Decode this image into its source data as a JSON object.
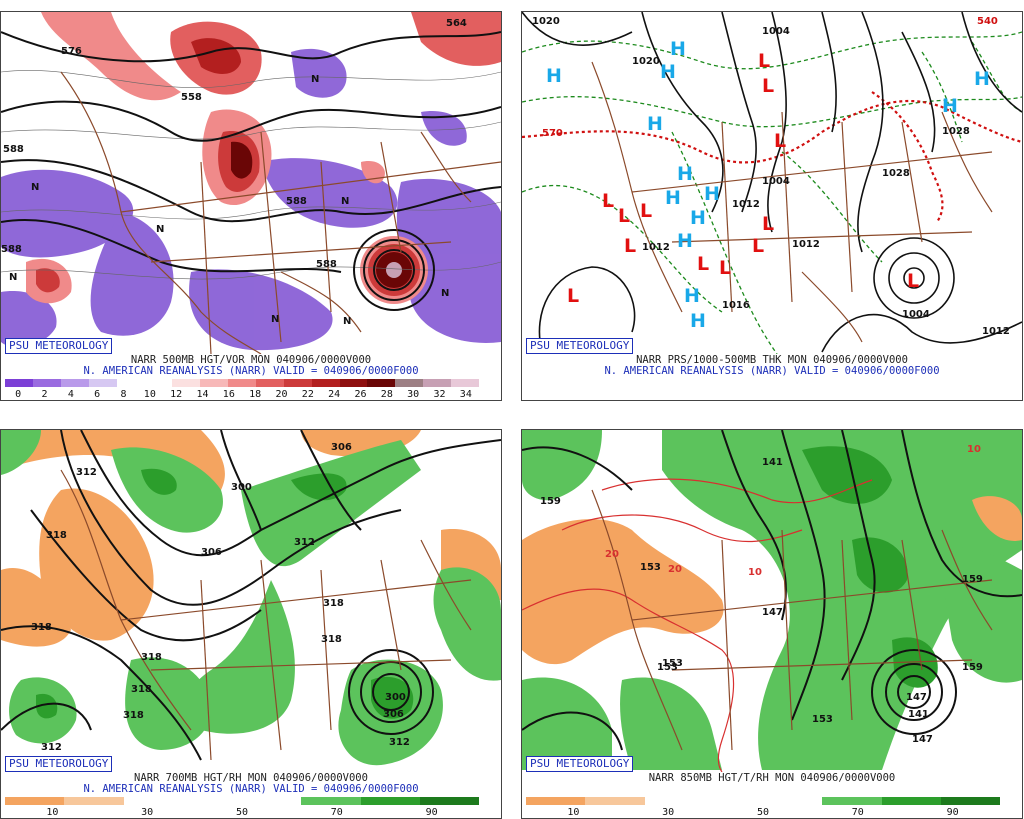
{
  "panels": [
    {
      "credit": "PSU METEOROLOGY",
      "line1": "NARR 500MB HGT/VOR MON 040906/0000V000",
      "line2": "N. AMERICAN REANALYSIS (NARR) VALID = 040906/0000F000",
      "colorbar_ticks": [
        "0",
        "2",
        "4",
        "6",
        "8",
        "10",
        "12",
        "14",
        "16",
        "18",
        "20",
        "22",
        "24",
        "26",
        "28",
        "30",
        "32",
        "34"
      ],
      "colorbar_colors": [
        "#7c3fd6",
        "#9a6be0",
        "#b99aea",
        "#d6c8f2",
        "#ffffff",
        "#ffffff",
        "#fbe0e0",
        "#f7b8b8",
        "#f08a8a",
        "#e25f5f",
        "#cc3a3a",
        "#b31f1f",
        "#8e0f0f",
        "#6a0606",
        "#9d7f84",
        "#c7a0b4",
        "#e8c8d8"
      ],
      "contour_labels": [
        "576",
        "558",
        "588",
        "588",
        "588",
        "588",
        "564",
        "N",
        "N",
        "N",
        "N",
        "N",
        "N",
        "N",
        "N"
      ]
    },
    {
      "credit": "PSU METEOROLOGY",
      "line1": "NARR PRS/1000-500MB THK MON 040906/0000V000",
      "line2": "N. AMERICAN REANALYSIS (NARR) VALID = 040906/0000F000",
      "contour_labels": [
        "1020",
        "1020",
        "1004",
        "1028",
        "1028",
        "1012",
        "1012",
        "1012",
        "1004",
        "1004",
        "1012",
        "1016",
        "570",
        "540"
      ],
      "highs": [
        "H",
        "H",
        "H",
        "H",
        "H",
        "H",
        "H",
        "H",
        "H",
        "H",
        "H",
        "H",
        "H"
      ],
      "lows": [
        "L",
        "L",
        "L",
        "L",
        "L",
        "L",
        "L",
        "L",
        "L",
        "L",
        "L",
        "L",
        "L"
      ],
      "colors": {
        "high": "#19a8e8",
        "low": "#e11010",
        "thickness": "#d01010",
        "dashed": "#1c8a1c"
      }
    },
    {
      "credit": "PSU METEOROLOGY",
      "line1": "NARR 700MB HGT/RH MON 040906/0000V000",
      "line2": "N. AMERICAN REANALYSIS (NARR) VALID = 040906/0000F000",
      "colorbar_ticks": [
        "10",
        "30",
        "50",
        "70",
        "90"
      ],
      "colorbar_colors": [
        "#f4a460",
        "#f7c79b",
        "#ffffff",
        "#ffffff",
        "#ffffff",
        "#5cc35c",
        "#2c9e2c",
        "#1d7a1d"
      ],
      "contour_labels": [
        "312",
        "318",
        "318",
        "300",
        "306",
        "312",
        "318",
        "318",
        "318",
        "318",
        "318",
        "312",
        "306",
        "300",
        "306",
        "312"
      ]
    },
    {
      "credit": "PSU METEOROLOGY",
      "line1": "NARR 850MB HGT/T/RH MON 040906/0000V000",
      "line2": "",
      "colorbar_ticks": [
        "10",
        "30",
        "50",
        "70",
        "90"
      ],
      "colorbar_colors": [
        "#f4a460",
        "#f7c79b",
        "#ffffff",
        "#ffffff",
        "#ffffff",
        "#5cc35c",
        "#2c9e2c",
        "#1d7a1d"
      ],
      "contour_labels": [
        "141",
        "159",
        "153",
        "20",
        "20",
        "10",
        "10",
        "147",
        "153",
        "159",
        "153",
        "147",
        "141",
        "159",
        "147",
        "153"
      ]
    }
  ]
}
